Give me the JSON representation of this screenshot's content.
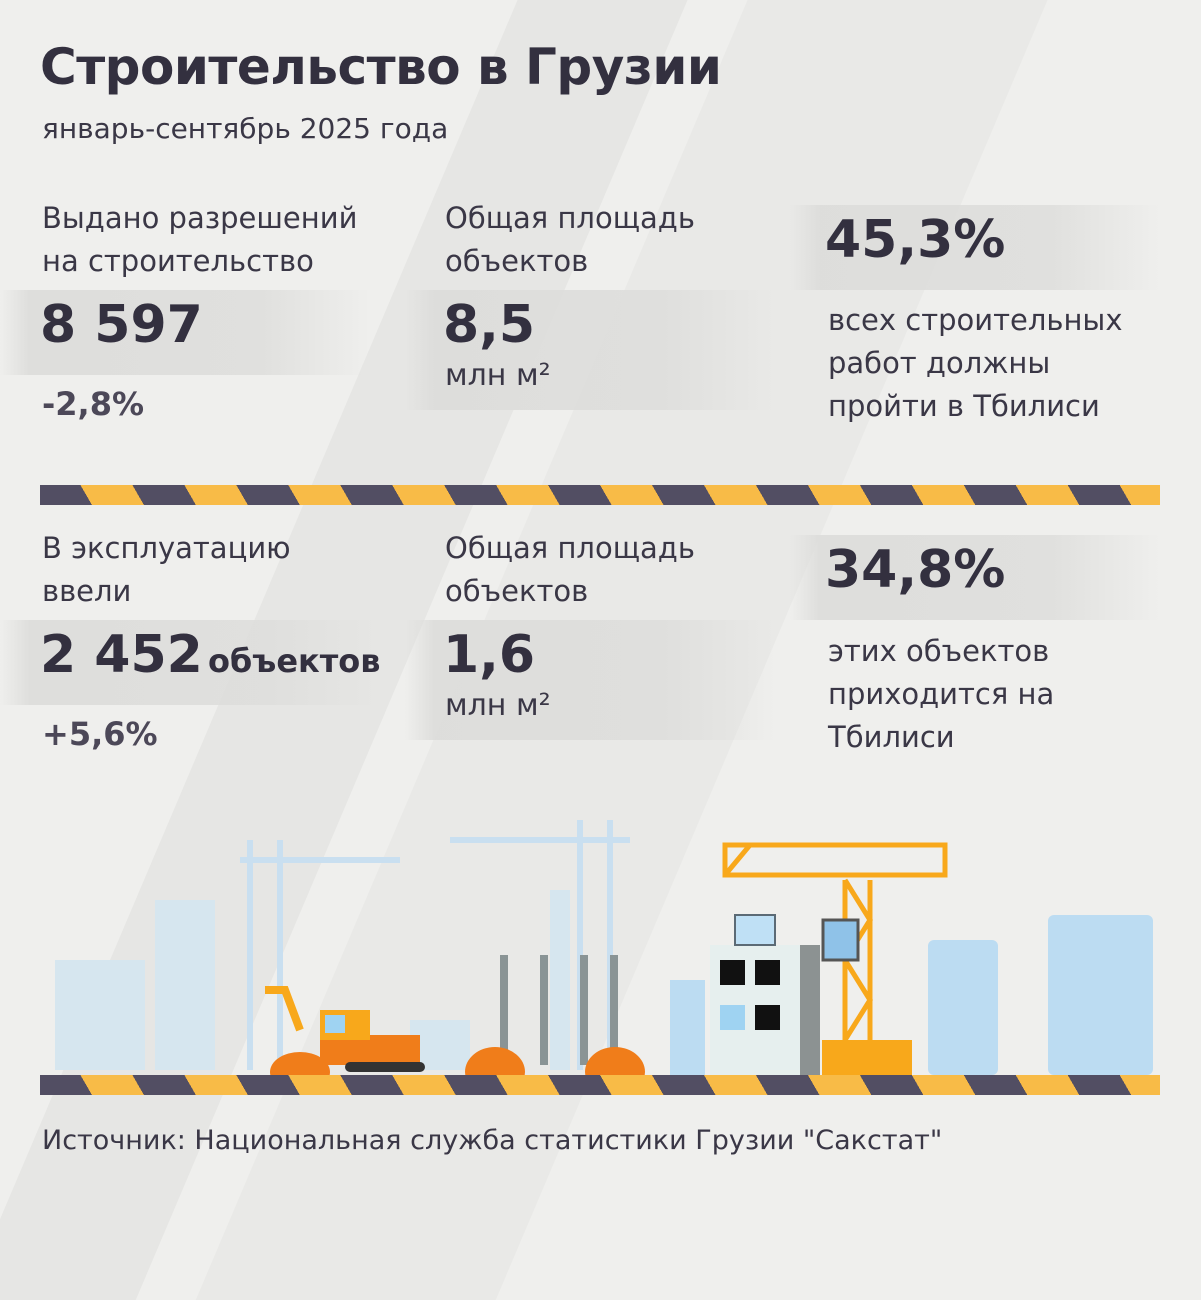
{
  "title": "Строительство в Грузии",
  "subtitle": "январь-сентябрь 2025 года",
  "permits": {
    "label": "Выдано разрешений на строительство",
    "value": "8 597",
    "change": "-2,8%"
  },
  "permits_area": {
    "label": "Общая площадь объектов",
    "value": "8,5",
    "unit": "млн м²"
  },
  "permits_tbilisi": {
    "value": "45,3%",
    "text": "всех строительных работ должны пройти в Тбилиси"
  },
  "commissioned": {
    "label": "В эксплуатацию ввели",
    "value": "2 452",
    "unit": "объектов",
    "change": "+5,6%"
  },
  "commissioned_area": {
    "label": "Общая площадь объектов",
    "value": "1,6",
    "unit": "млн м²"
  },
  "commissioned_tbilisi": {
    "value": "34,8%",
    "text": "этих объектов приходится на Тбилиси"
  },
  "source": "Источник: Национальная служба статистики Грузии \"Сакстат\"",
  "colors": {
    "text": "#33303f",
    "stripe_dark": "#524e63",
    "stripe_yellow": "#f8bb47",
    "crane": "#f8a81b",
    "building_blue": "#bcdcf2"
  }
}
